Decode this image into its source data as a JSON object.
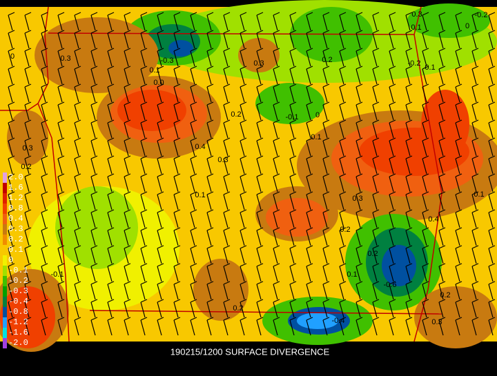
{
  "caption": "190215/1200 SURFACE DIVERGENCE",
  "colorbar": {
    "labels": [
      "2.0",
      "1.6",
      "1.2",
      "0.8",
      "0.4",
      "0.3",
      "0.2",
      "0.1",
      "0",
      "-0.1",
      "-0.2",
      "-0.3",
      "-0.4",
      "-0.8",
      "-1.2",
      "-1.6",
      "-2.0"
    ],
    "colors": [
      "#e0a0e0",
      "#c00000",
      "#e02000",
      "#f04000",
      "#f06010",
      "#c87a10",
      "#f08c00",
      "#f8c800",
      "#f0f000",
      "#a0e000",
      "#40c000",
      "#00a000",
      "#008040",
      "#0050a0",
      "#20a0ff",
      "#00e0e0",
      "#a040e0"
    ]
  },
  "contour_labels": [
    "0.3",
    "0.3",
    "0.2",
    "-0.3",
    "0.1",
    "0.0",
    "0.2",
    "-0.1",
    "0",
    "0.1",
    "0.4",
    "0.3",
    "0.3",
    "0.2",
    "0.1",
    "0.3",
    "0.2",
    "0.1",
    "0.4",
    "0.2",
    "-0.6",
    "0.1",
    "-0.4",
    "0.2",
    "0.3",
    "0.2",
    "0",
    "-0.1",
    "0.3",
    "0.1",
    "-0.2",
    "0",
    "-0.2",
    "0.1"
  ]
}
